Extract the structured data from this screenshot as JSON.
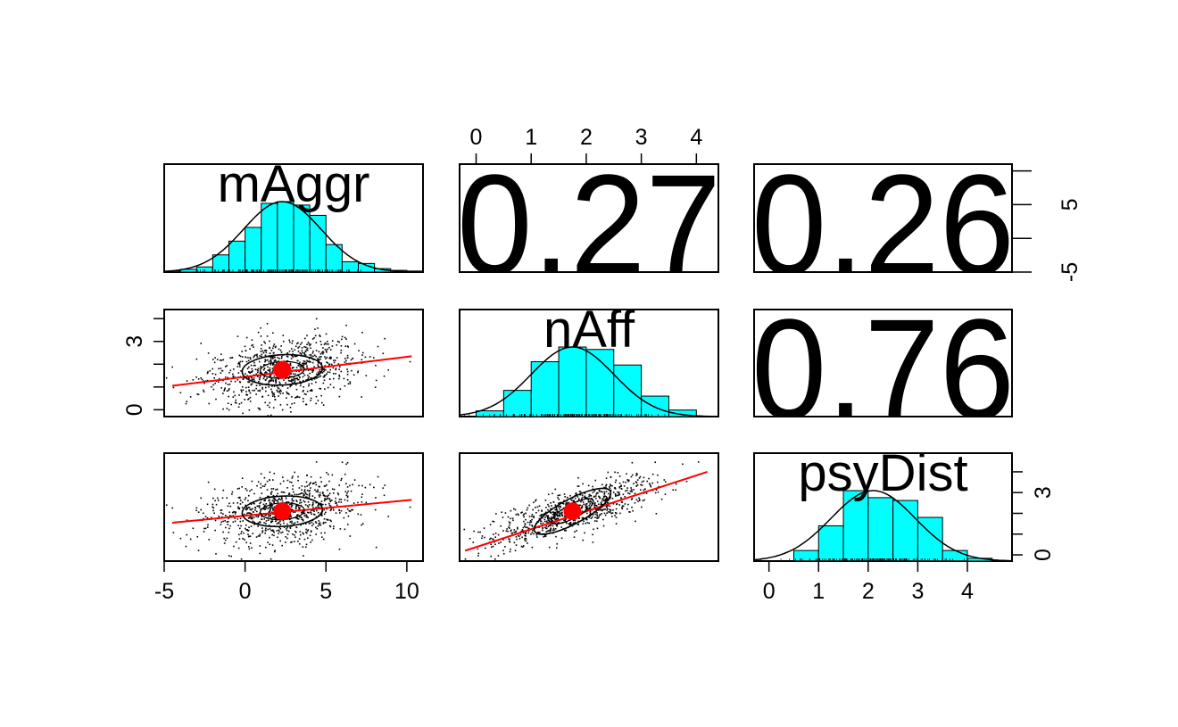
{
  "chart_data": {
    "type": "scatter",
    "variables": [
      "mAggr",
      "nAff",
      "psyDist"
    ],
    "correlations": [
      {
        "row": 0,
        "col": 1,
        "label": "0.27"
      },
      {
        "row": 0,
        "col": 2,
        "label": "0.26"
      },
      {
        "row": 1,
        "col": 2,
        "label": "0.76"
      }
    ],
    "ranges": {
      "mAggr": [
        -5,
        11
      ],
      "nAff": [
        -0.3,
        4.4
      ],
      "psyDist": [
        -0.3,
        4.9
      ]
    },
    "ticks": {
      "mAggr": [
        "-5",
        "0",
        "5",
        "10"
      ],
      "nAff": [
        "0",
        "1",
        "2",
        "3",
        "4"
      ],
      "psyDist": [
        "0",
        "1",
        "2",
        "3",
        "4"
      ],
      "mAggr_right": [
        "-5",
        "5"
      ],
      "nAff_left": [
        "0",
        "3"
      ],
      "psyDist_right": [
        "0",
        "3"
      ]
    },
    "histograms": {
      "mAggr": {
        "breaks": [
          -5,
          -4,
          -3,
          -2,
          -1,
          0,
          1,
          2,
          3,
          4,
          5,
          6,
          7,
          8,
          9,
          10,
          11
        ],
        "density": [
          0.003,
          0.008,
          0.015,
          0.05,
          0.09,
          0.13,
          0.2,
          0.205,
          0.195,
          0.165,
          0.08,
          0.03,
          0.025,
          0.01,
          0.005,
          0.003
        ]
      },
      "nAff": {
        "breaks": [
          0,
          0.5,
          1,
          1.5,
          2,
          2.5,
          3,
          3.5,
          4
        ],
        "density": [
          0.07,
          0.32,
          0.67,
          0.85,
          0.82,
          0.63,
          0.25,
          0.08
        ]
      },
      "psyDist": {
        "breaks": [
          0.5,
          1,
          1.5,
          2,
          2.5,
          3,
          3.5,
          4,
          4.5
        ],
        "density": [
          0.15,
          0.5,
          1.0,
          0.9,
          0.86,
          0.62,
          0.15,
          0.04
        ]
      }
    },
    "means": {
      "mAggr": 2.3,
      "nAff": 1.75,
      "psyDist": 2.1
    },
    "lines": [
      {
        "x": "mAggr",
        "y": "nAff",
        "x0": -4.5,
        "y0": 1.05,
        "x1": 10.3,
        "y1": 2.35
      },
      {
        "x": "mAggr",
        "y": "psyDist",
        "x0": -4.5,
        "y0": 1.55,
        "x1": 10.3,
        "y1": 2.65
      },
      {
        "x": "nAff",
        "y": "psyDist",
        "x0": -0.2,
        "y0": 0.2,
        "x1": 4.2,
        "y1": 4.0
      }
    ],
    "point_color": "#000000",
    "fit_color": "#ff0000",
    "mean_color": "#ff0000",
    "hist_fill": "#00ffff",
    "grid": false,
    "n_points": 900
  }
}
